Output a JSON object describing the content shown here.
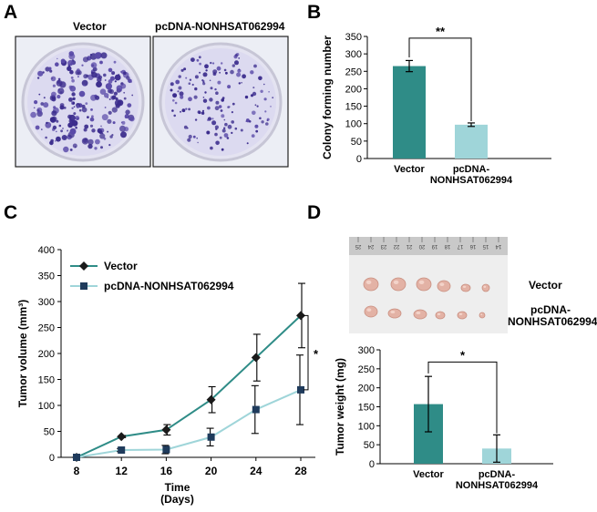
{
  "panels": {
    "a": {
      "letter": "A",
      "labels": [
        "Vector",
        "pcDNA-NONHSAT062994"
      ]
    },
    "b": {
      "letter": "B"
    },
    "c": {
      "letter": "C"
    },
    "d": {
      "letter": "D",
      "photo_labels": [
        "Vector",
        "pcDNA-",
        "NONHSAT062994"
      ],
      "ruler_ticks": [
        "25",
        "24",
        "23",
        "22",
        "21",
        "20",
        "19",
        "18",
        "17",
        "16",
        "15",
        "14"
      ]
    }
  },
  "colors": {
    "teal": "#2f8c87",
    "light": "#9fd5d9",
    "dark_series": "#1f3b5c"
  },
  "chart_data": [
    {
      "id": "colony",
      "type": "bar",
      "title": "",
      "ylabel": "Colony forming number",
      "xlabel": "",
      "ylim": [
        0,
        350
      ],
      "yticks": [
        "0",
        "50",
        "100",
        "150",
        "200",
        "250",
        "300",
        "350"
      ],
      "categories": [
        [
          "Vector"
        ],
        [
          "pcDNA-",
          "NONHSAT062994"
        ]
      ],
      "values": [
        265,
        97
      ],
      "errors": [
        16,
        5
      ],
      "significance": "**"
    },
    {
      "id": "tumor_volume",
      "type": "line",
      "title": "",
      "ylabel": "Tumor volume (mm³)",
      "xlabel": [
        "Time",
        "(Days)"
      ],
      "ylim": [
        0,
        400
      ],
      "yticks": [
        "0",
        "50",
        "100",
        "150",
        "200",
        "250",
        "300",
        "350",
        "400"
      ],
      "x": [
        8,
        12,
        16,
        20,
        24,
        28
      ],
      "xticks": [
        "8",
        "12",
        "16",
        "20",
        "24",
        "28"
      ],
      "series": [
        {
          "name": "Vector",
          "values": [
            0,
            40,
            53,
            111,
            192,
            273
          ],
          "errors": [
            0,
            2,
            10,
            25,
            45,
            62
          ]
        },
        {
          "name": "pcDNA-NONHSAT062994",
          "values": [
            0,
            14,
            15,
            39,
            92,
            130
          ],
          "errors": [
            0,
            3,
            8,
            17,
            46,
            67
          ]
        }
      ],
      "significance": "*",
      "legend_position": "top-left"
    },
    {
      "id": "tumor_weight",
      "type": "bar",
      "title": "",
      "ylabel": "Tumor weight (mg)",
      "xlabel": "",
      "ylim": [
        0,
        300
      ],
      "yticks": [
        "0",
        "50",
        "100",
        "150",
        "200",
        "250",
        "300"
      ],
      "categories": [
        [
          "Vector"
        ],
        [
          "pcDNA-",
          "NONHSAT062994"
        ]
      ],
      "values": [
        157,
        40
      ],
      "errors": [
        73,
        36
      ],
      "significance": "*"
    }
  ]
}
